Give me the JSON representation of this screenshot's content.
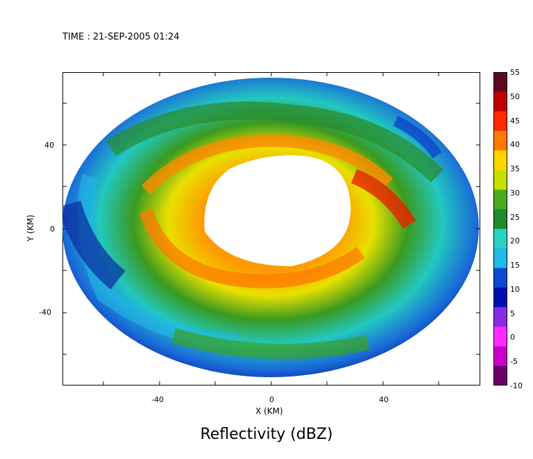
{
  "header": {
    "time_label": "TIME : 21-SEP-2005 01:24"
  },
  "chart_data": {
    "type": "heatmap",
    "title": "Reflectivity (dBZ)",
    "xlabel": "X (KM)",
    "ylabel": "Y (KM)",
    "xlim": [
      -75,
      75
    ],
    "ylim": [
      -75,
      75
    ],
    "x_ticks": [
      -40,
      0,
      40
    ],
    "y_ticks": [
      -40,
      0,
      40
    ],
    "colorbar": {
      "min": -10,
      "max": 55,
      "ticks": [
        "55",
        "50",
        "45",
        "40",
        "35",
        "30",
        "25",
        "20",
        "15",
        "10",
        "5",
        "0",
        "-5",
        "-10"
      ],
      "colors": [
        "#5c0a1e",
        "#c00000",
        "#ff2a00",
        "#ff7a00",
        "#ffd400",
        "#c8e000",
        "#4caa1e",
        "#1f8a2e",
        "#2ad2c4",
        "#22b8e8",
        "#0a4bd0",
        "#0010b0",
        "#8a2ae0",
        "#ff2aff",
        "#c800c8",
        "#6a006a"
      ]
    },
    "grid": false,
    "legend": "right"
  }
}
